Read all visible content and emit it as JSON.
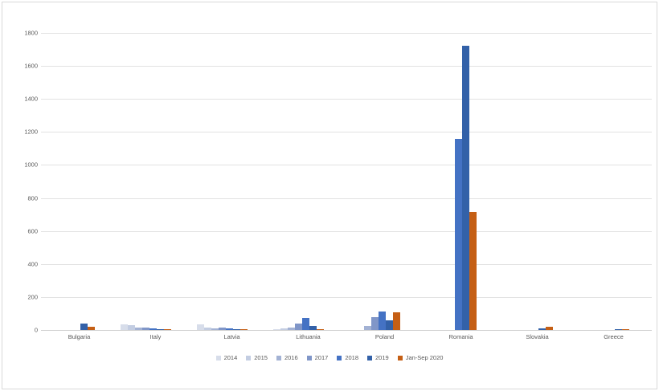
{
  "chart": {
    "background": "#ffffff",
    "border_color": "#d9d9d9",
    "gridline_color": "#e2e2e2",
    "axis_line_color": "#d0d0d0",
    "text_color": "#595959"
  },
  "chart_data": {
    "type": "bar",
    "title": "",
    "xlabel": "",
    "ylabel": "",
    "ylim": [
      0,
      1800
    ],
    "ytick_step": 200,
    "yticks": [
      0,
      200,
      400,
      600,
      800,
      1000,
      1200,
      1400,
      1600,
      1800
    ],
    "grid": "horizontal",
    "legend_position": "bottom",
    "categories": [
      "Bulgaria",
      "Italy",
      "Latvia",
      "Lithuania",
      "Poland",
      "Romania",
      "Slovakia",
      "Greece"
    ],
    "series": [
      {
        "name": "2014",
        "color": "#d7ddea",
        "values": [
          0,
          32,
          33,
          6,
          0,
          0,
          0,
          0
        ]
      },
      {
        "name": "2015",
        "color": "#c3cde2",
        "values": [
          0,
          28,
          15,
          12,
          0,
          0,
          0,
          0
        ]
      },
      {
        "name": "2016",
        "color": "#a3b2d4",
        "values": [
          0,
          17,
          8,
          16,
          25,
          0,
          0,
          0
        ]
      },
      {
        "name": "2017",
        "color": "#8096c8",
        "values": [
          0,
          13,
          14,
          38,
          78,
          0,
          0,
          0
        ]
      },
      {
        "name": "2018",
        "color": "#4472c4",
        "values": [
          0,
          9,
          10,
          75,
          112,
          1160,
          0,
          0
        ]
      },
      {
        "name": "2019",
        "color": "#3361a8",
        "values": [
          40,
          4,
          2,
          22,
          60,
          1720,
          10,
          1
        ]
      },
      {
        "name": "Jan-Sep 2020",
        "color": "#c55f15",
        "values": [
          18,
          1,
          6,
          4,
          105,
          715,
          18,
          2
        ]
      }
    ]
  }
}
